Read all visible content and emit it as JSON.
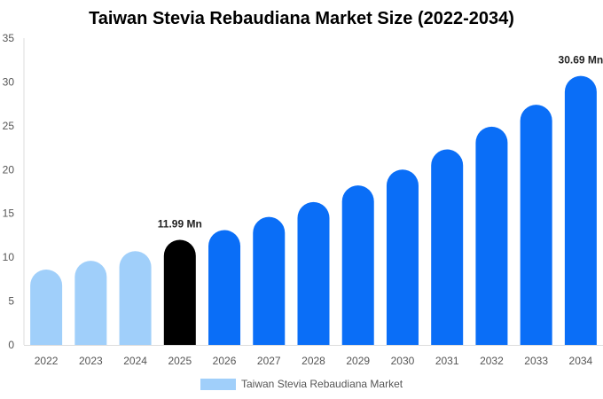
{
  "chart_data": {
    "type": "bar",
    "title": "Taiwan Stevia Rebaudiana Market Size (2022-2034)",
    "categories": [
      "2022",
      "2023",
      "2024",
      "2025",
      "2026",
      "2027",
      "2028",
      "2029",
      "2030",
      "2031",
      "2032",
      "2033",
      "2034"
    ],
    "series": [
      {
        "name": "Taiwan Stevia Rebaudiana Market",
        "values": [
          8.6,
          9.6,
          10.7,
          11.99,
          13.1,
          14.6,
          16.3,
          18.2,
          20.0,
          22.3,
          24.9,
          27.4,
          30.69
        ]
      }
    ],
    "data_labels": [
      {
        "category": "2025",
        "text": "11.99 Mn"
      },
      {
        "category": "2034",
        "text": "30.69 Mn"
      }
    ],
    "ylim": [
      0,
      35
    ],
    "yticks": [
      0,
      5,
      10,
      15,
      20,
      25,
      30,
      35
    ],
    "xlabel": "",
    "ylabel": "",
    "grid": false,
    "legend_position": "bottom",
    "colors": {
      "historical": "#a0cffa",
      "current": "#000000",
      "forecast": "#0a6ef7",
      "legend": "#a0cffa",
      "axis": "#dddddd"
    },
    "bar_color_groups": [
      "historical",
      "historical",
      "historical",
      "current",
      "forecast",
      "forecast",
      "forecast",
      "forecast",
      "forecast",
      "forecast",
      "forecast",
      "forecast",
      "forecast"
    ]
  }
}
